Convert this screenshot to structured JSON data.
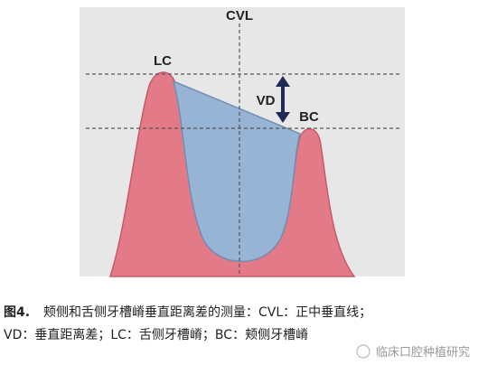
{
  "figure": {
    "labels": {
      "cvl": "CVL",
      "lc": "LC",
      "vd": "VD",
      "bc": "BC"
    },
    "caption": {
      "number": "图4.",
      "line1": "颊侧和舌侧牙槽嵴垂直距离差的测量：CVL：正中垂直线；",
      "line2": "VD：垂直距离差；LC：舌侧牙槽嵴；BC：颊侧牙槽嵴"
    },
    "watermark": "临床口腔种植研究"
  }
}
